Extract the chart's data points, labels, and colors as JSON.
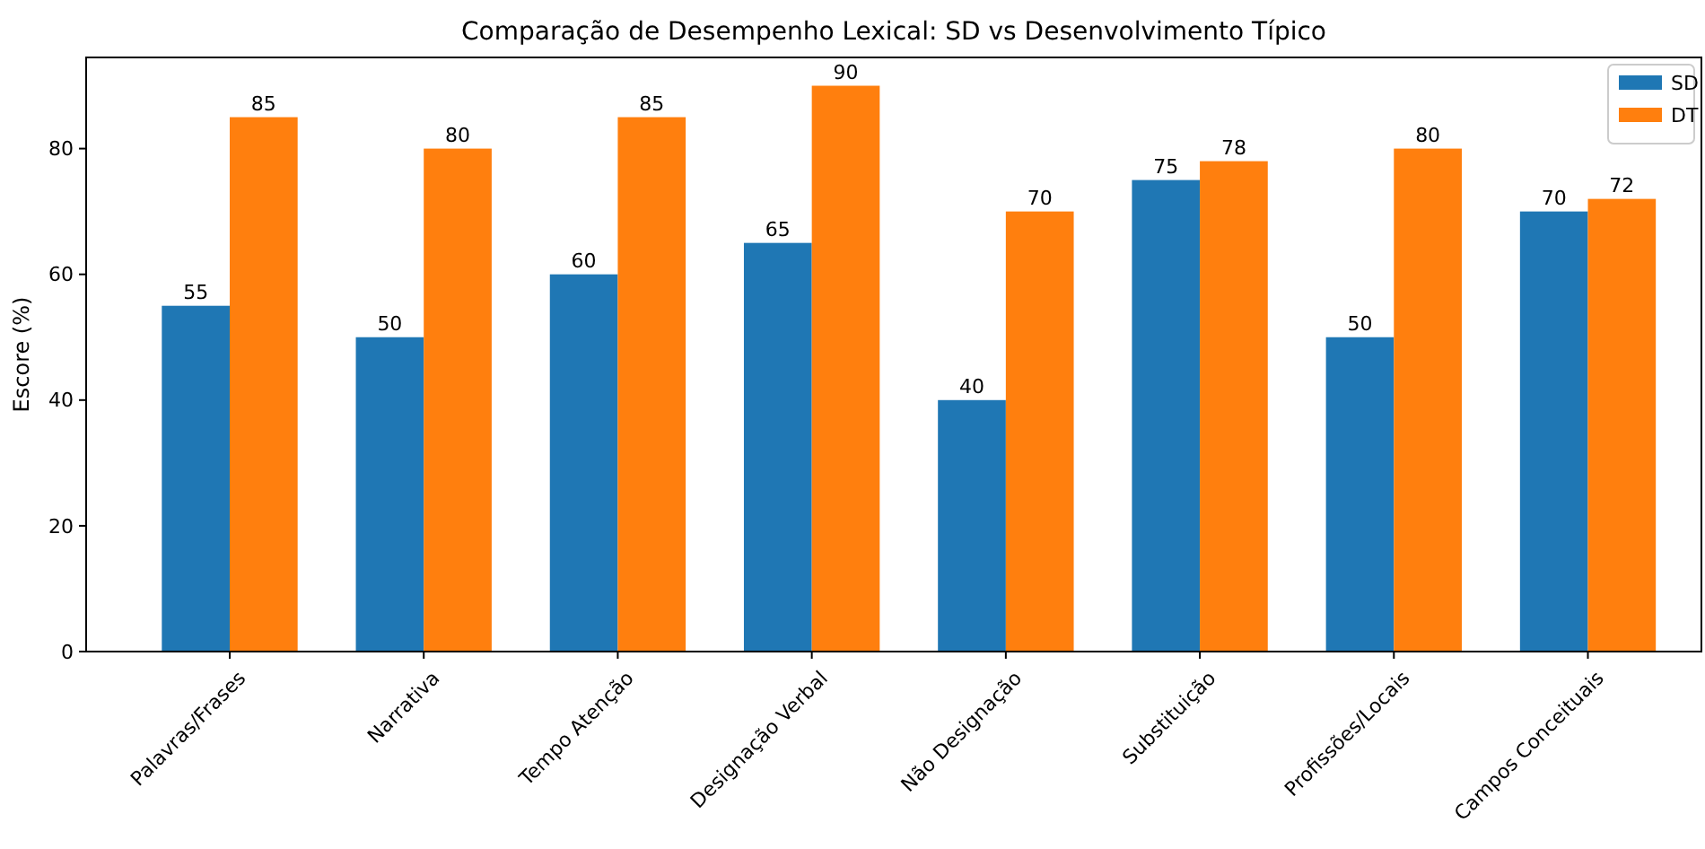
{
  "chart_data": {
    "type": "bar",
    "title": "Comparação de Desempenho Lexical: SD vs Desenvolvimento Típico",
    "ylabel": "Escore (%)",
    "categories": [
      "Palavras/Frases",
      "Narrativa",
      "Tempo Atenção",
      "Designação Verbal",
      "Não Designação",
      "Substituição",
      "Profissões/Locais",
      "Campos Conceituais"
    ],
    "series": [
      {
        "name": "SD",
        "color": "#1f77b4",
        "values": [
          55,
          50,
          60,
          65,
          40,
          75,
          50,
          70
        ]
      },
      {
        "name": "DT",
        "color": "#ff7f0e",
        "values": [
          85,
          80,
          85,
          90,
          70,
          78,
          80,
          72
        ]
      }
    ],
    "ylim": [
      0,
      94.5
    ],
    "yticks": [
      0,
      20,
      40,
      60,
      80
    ],
    "data_labels": true,
    "legend": "top right",
    "grid": false
  }
}
